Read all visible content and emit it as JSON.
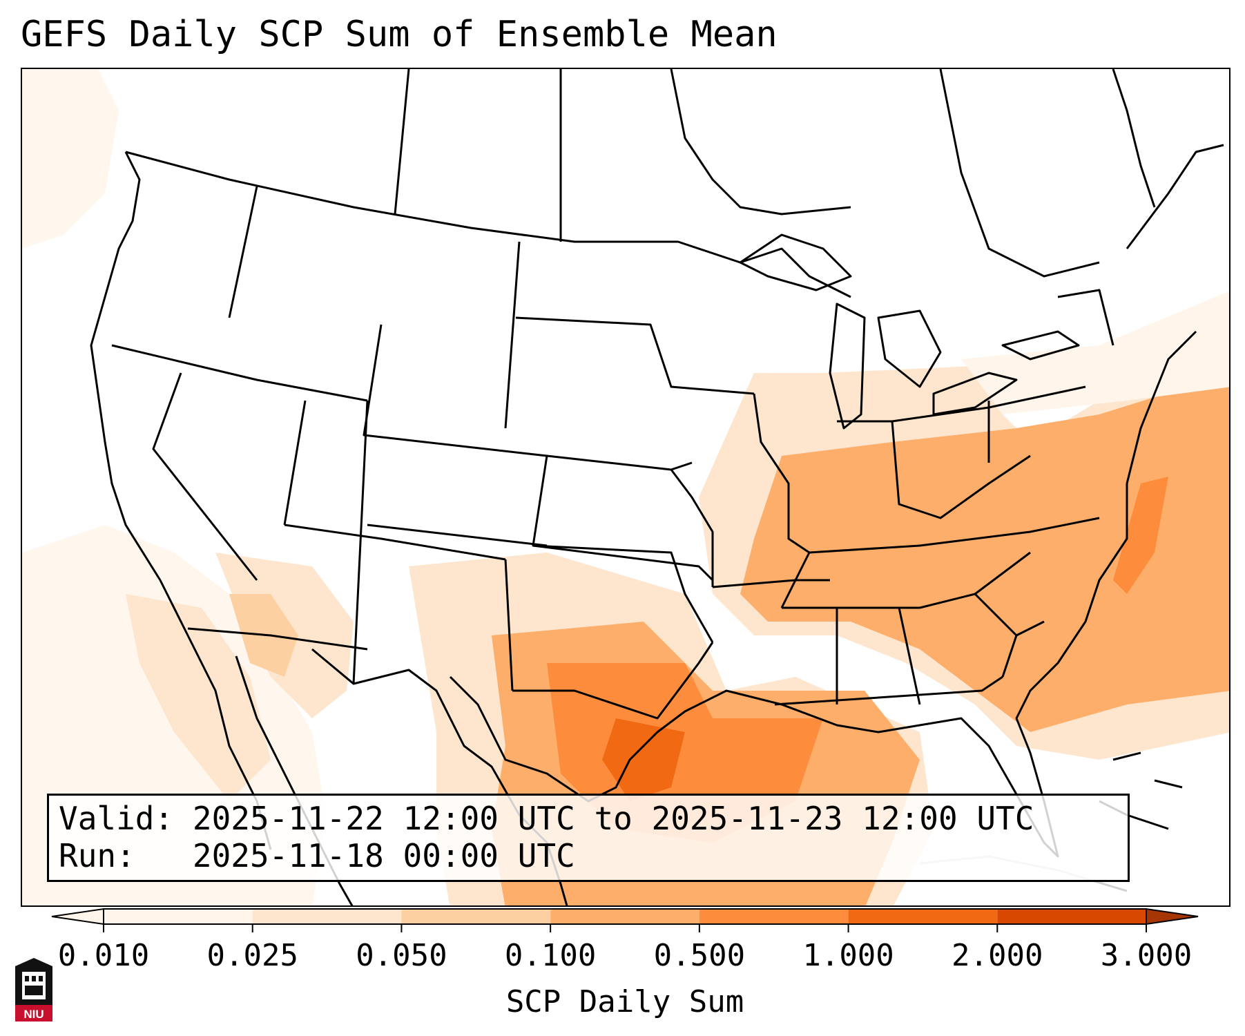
{
  "title": "GEFS Daily SCP Sum of Ensemble Mean",
  "info": {
    "valid_label": "Valid:",
    "valid_value": "2025-11-22 12:00 UTC to 2025-11-23 12:00 UTC",
    "run_label": "Run:",
    "run_value": "2025-11-18 00:00 UTC"
  },
  "colorbar": {
    "label": "SCP Daily Sum",
    "ticks": [
      "0.010",
      "0.025",
      "0.050",
      "0.100",
      "0.500",
      "1.000",
      "2.000",
      "3.000"
    ],
    "colors": [
      "#fff5eb",
      "#fee6ce",
      "#fdd0a2",
      "#fdae6b",
      "#fd8d3c",
      "#f16913",
      "#d94801",
      "#a63603"
    ],
    "extend": "both"
  },
  "logo": {
    "text": "NIU"
  }
}
